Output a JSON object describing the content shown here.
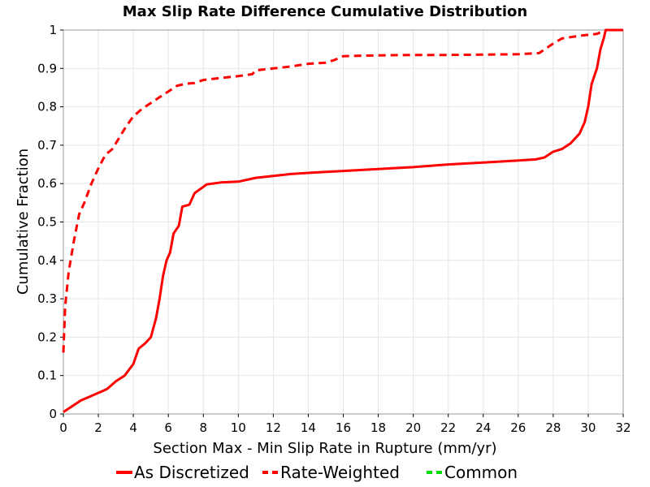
{
  "chart_data": {
    "type": "line",
    "title": "Max Slip Rate Difference Cumulative Distribution",
    "xlabel": "Section Max - Min Slip Rate in Rupture (mm/yr)",
    "ylabel": "Cumulative Fraction",
    "xlim": [
      0,
      32
    ],
    "ylim": [
      0,
      1
    ],
    "xticks": [
      "0",
      "2",
      "4",
      "6",
      "8",
      "10",
      "12",
      "14",
      "16",
      "18",
      "20",
      "22",
      "24",
      "26",
      "28",
      "30",
      "32"
    ],
    "yticks": [
      "0",
      "0.1",
      "0.2",
      "0.3",
      "0.4",
      "0.5",
      "0.6",
      "0.7",
      "0.8",
      "0.9",
      "1"
    ],
    "grid": true,
    "legend_position": "bottom",
    "series": [
      {
        "name": "As Discretized",
        "color": "#ff0000",
        "dash": "solid",
        "points": [
          [
            0,
            0.005
          ],
          [
            0.5,
            0.02
          ],
          [
            1,
            0.035
          ],
          [
            1.5,
            0.045
          ],
          [
            2,
            0.055
          ],
          [
            2.5,
            0.065
          ],
          [
            3,
            0.085
          ],
          [
            3.5,
            0.1
          ],
          [
            4,
            0.13
          ],
          [
            4.3,
            0.17
          ],
          [
            4.7,
            0.185
          ],
          [
            5,
            0.2
          ],
          [
            5.3,
            0.25
          ],
          [
            5.5,
            0.3
          ],
          [
            5.7,
            0.36
          ],
          [
            5.9,
            0.4
          ],
          [
            6.1,
            0.42
          ],
          [
            6.3,
            0.47
          ],
          [
            6.6,
            0.49
          ],
          [
            6.8,
            0.54
          ],
          [
            7.2,
            0.545
          ],
          [
            7.5,
            0.575
          ],
          [
            7.8,
            0.585
          ],
          [
            8.2,
            0.598
          ],
          [
            9,
            0.603
          ],
          [
            10,
            0.605
          ],
          [
            11,
            0.615
          ],
          [
            12,
            0.62
          ],
          [
            13,
            0.625
          ],
          [
            14,
            0.628
          ],
          [
            16,
            0.633
          ],
          [
            18,
            0.638
          ],
          [
            20,
            0.643
          ],
          [
            22,
            0.65
          ],
          [
            24,
            0.655
          ],
          [
            26,
            0.66
          ],
          [
            27,
            0.663
          ],
          [
            27.5,
            0.668
          ],
          [
            28,
            0.683
          ],
          [
            28.5,
            0.69
          ],
          [
            29,
            0.705
          ],
          [
            29.5,
            0.73
          ],
          [
            29.8,
            0.76
          ],
          [
            30,
            0.8
          ],
          [
            30.2,
            0.86
          ],
          [
            30.5,
            0.9
          ],
          [
            30.7,
            0.95
          ],
          [
            30.9,
            0.98
          ],
          [
            31,
            1.0
          ],
          [
            32,
            1.0
          ]
        ]
      },
      {
        "name": "Rate-Weighted",
        "color": "#ff0000",
        "dash": "dashed",
        "points": [
          [
            0,
            0.16
          ],
          [
            0.1,
            0.28
          ],
          [
            0.3,
            0.37
          ],
          [
            0.6,
            0.45
          ],
          [
            0.9,
            0.52
          ],
          [
            1.2,
            0.55
          ],
          [
            1.6,
            0.6
          ],
          [
            2,
            0.64
          ],
          [
            2.4,
            0.675
          ],
          [
            2.8,
            0.69
          ],
          [
            3.2,
            0.72
          ],
          [
            3.6,
            0.75
          ],
          [
            4,
            0.775
          ],
          [
            4.5,
            0.795
          ],
          [
            5,
            0.81
          ],
          [
            5.5,
            0.825
          ],
          [
            6,
            0.84
          ],
          [
            6.5,
            0.855
          ],
          [
            7,
            0.86
          ],
          [
            7.5,
            0.862
          ],
          [
            8,
            0.87
          ],
          [
            9,
            0.875
          ],
          [
            10,
            0.88
          ],
          [
            10.8,
            0.885
          ],
          [
            11,
            0.895
          ],
          [
            12,
            0.9
          ],
          [
            13,
            0.905
          ],
          [
            14,
            0.912
          ],
          [
            15,
            0.915
          ],
          [
            15.5,
            0.922
          ],
          [
            16,
            0.932
          ],
          [
            18,
            0.934
          ],
          [
            20,
            0.935
          ],
          [
            22,
            0.935
          ],
          [
            24,
            0.936
          ],
          [
            26,
            0.937
          ],
          [
            27.2,
            0.94
          ],
          [
            28,
            0.965
          ],
          [
            28.5,
            0.978
          ],
          [
            29.5,
            0.985
          ],
          [
            30.5,
            0.99
          ],
          [
            31,
            1.0
          ],
          [
            32,
            1.0
          ]
        ]
      },
      {
        "name": "Common",
        "color": "#00dd00",
        "dash": "dashed",
        "points": []
      }
    ]
  }
}
